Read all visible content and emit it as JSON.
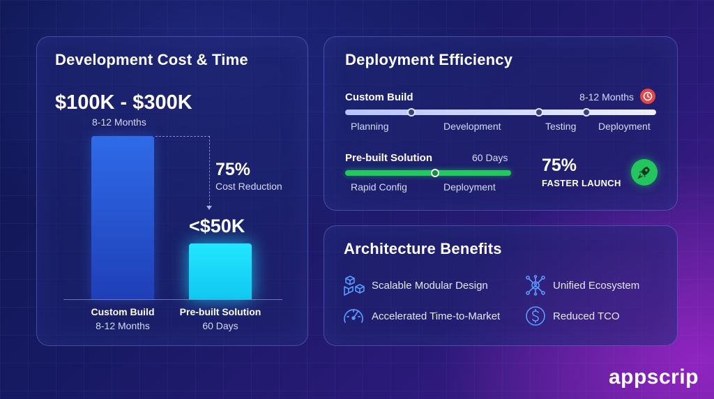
{
  "colors": {
    "custom_bar": "#2f6be8",
    "prebuilt_bar": "#22e6ff",
    "prebuilt_track": "#25c85e",
    "clock_badge": "#e04848",
    "rocket_badge": "#22c55e"
  },
  "cost_card": {
    "title": "Development Cost & Time",
    "custom_price": "$100K - $300K",
    "custom_duration": "8-12 Months",
    "reduction_pct": "75%",
    "reduction_label": "Cost Reduction",
    "prebuilt_price": "<$50K",
    "categories": [
      {
        "label": "Custom Build",
        "sub": "8-12 Months"
      },
      {
        "label": "Pre-built Solution",
        "sub": "60 Days"
      }
    ]
  },
  "deploy_card": {
    "title": "Deployment Efficiency",
    "custom": {
      "label": "Custom Build",
      "duration": "8-12 Months",
      "icon": "clock-icon",
      "phases": [
        "Planning",
        "Development",
        "Testing",
        "Deployment"
      ]
    },
    "prebuilt": {
      "label": "Pre-built Solution",
      "duration": "60 Days",
      "phases": [
        "Rapid Config",
        "Deployment"
      ]
    },
    "faster_pct": "75%",
    "faster_label": "FASTER LAUNCH",
    "faster_icon": "rocket-icon"
  },
  "arch_card": {
    "title": "Architecture Benefits",
    "items": [
      {
        "label": "Scalable Modular Design",
        "icon": "cubes-icon"
      },
      {
        "label": "Unified Ecosystem",
        "icon": "network-icon"
      },
      {
        "label": "Accelerated Time-to-Market",
        "icon": "speedometer-icon"
      },
      {
        "label": "Reduced TCO",
        "icon": "dollar-icon"
      }
    ]
  },
  "brand": "appscrip"
}
